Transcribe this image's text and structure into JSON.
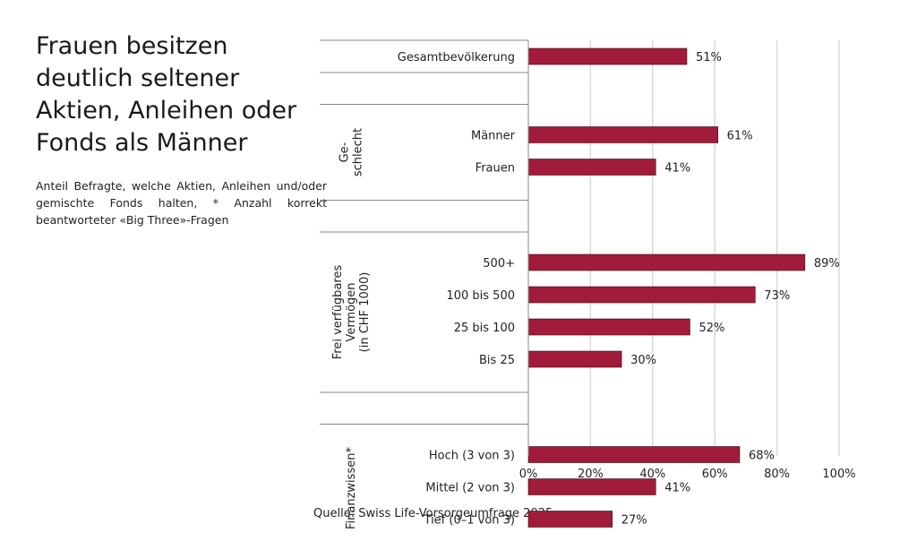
{
  "title": "Frauen besitzen deutlich seltener Aktien, Anleihen oder Fonds als Männer",
  "subtitle": "Anteil Befragte, welche Aktien, Anleihen und/oder gemischte Fonds halten, * Anzahl korrekt beantworteter «Big Three»-Fragen",
  "source": "Quelle: Swiss Life-Vorsorgeumfrage 2025",
  "colors": {
    "bar": "#a11c3a",
    "grid": "#d9d9d9",
    "line": "#888888"
  },
  "chart_data": {
    "type": "bar",
    "orientation": "horizontal",
    "xlim": [
      0,
      100
    ],
    "x_ticks": [
      "0%",
      "20%",
      "40%",
      "60%",
      "80%",
      "100%"
    ],
    "grid": true,
    "groups": [
      {
        "label": "",
        "categories": [
          "Gesamtbevölkerung"
        ],
        "values": [
          51
        ],
        "data_labels": [
          "51%"
        ]
      },
      {
        "label": "Ge-\nschlecht",
        "categories": [
          "Männer",
          "Frauen"
        ],
        "values": [
          61,
          41
        ],
        "data_labels": [
          "61%",
          "41%"
        ]
      },
      {
        "label": "Frei verfügbares\nVermögen\n(in CHF 1000)",
        "categories": [
          "500+",
          "100 bis 500",
          "25 bis 100",
          "Bis 25"
        ],
        "values": [
          89,
          73,
          52,
          30
        ],
        "data_labels": [
          "89%",
          "73%",
          "52%",
          "30%"
        ]
      },
      {
        "label": "Finanzwissen*",
        "categories": [
          "Hoch (3 von 3)",
          "Mittel (2 von 3)",
          "Tief (0–1 von 3)"
        ],
        "values": [
          68,
          41,
          27
        ],
        "data_labels": [
          "68%",
          "41%",
          "27%"
        ]
      }
    ]
  }
}
